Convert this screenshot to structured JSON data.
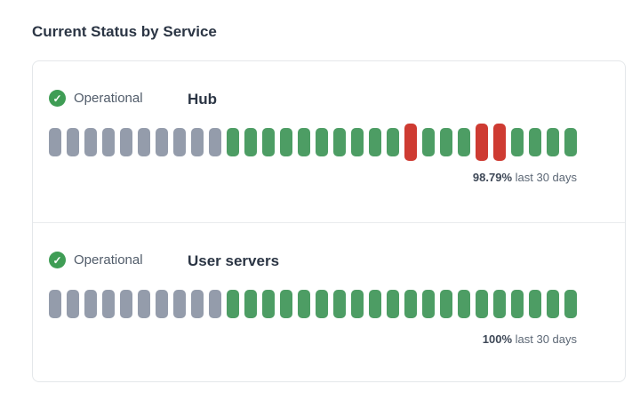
{
  "page_title": "Current Status by Service",
  "colors": {
    "operational_green": "#3f9d55",
    "bar_green": "#4d9d64",
    "bar_red": "#ce3b32",
    "bar_gray": "#949cab"
  },
  "icons": {
    "operational": "check-circle-icon",
    "check_glyph": "✓"
  },
  "services": [
    {
      "name": "Hub",
      "status_label": "Operational",
      "uptime_percent": "98.79%",
      "uptime_caption": "last 30 days",
      "bars": [
        "gray",
        "gray",
        "gray",
        "gray",
        "gray",
        "gray",
        "gray",
        "gray",
        "gray",
        "gray",
        "green",
        "green",
        "green",
        "green",
        "green",
        "green",
        "green",
        "green",
        "green",
        "green",
        "red",
        "green",
        "green",
        "green",
        "red",
        "red",
        "green",
        "green",
        "green",
        "green"
      ]
    },
    {
      "name": "User servers",
      "status_label": "Operational",
      "uptime_percent": "100%",
      "uptime_caption": "last 30 days",
      "bars": [
        "gray",
        "gray",
        "gray",
        "gray",
        "gray",
        "gray",
        "gray",
        "gray",
        "gray",
        "gray",
        "green",
        "green",
        "green",
        "green",
        "green",
        "green",
        "green",
        "green",
        "green",
        "green",
        "green",
        "green",
        "green",
        "green",
        "green",
        "green",
        "green",
        "green",
        "green",
        "green"
      ]
    }
  ]
}
